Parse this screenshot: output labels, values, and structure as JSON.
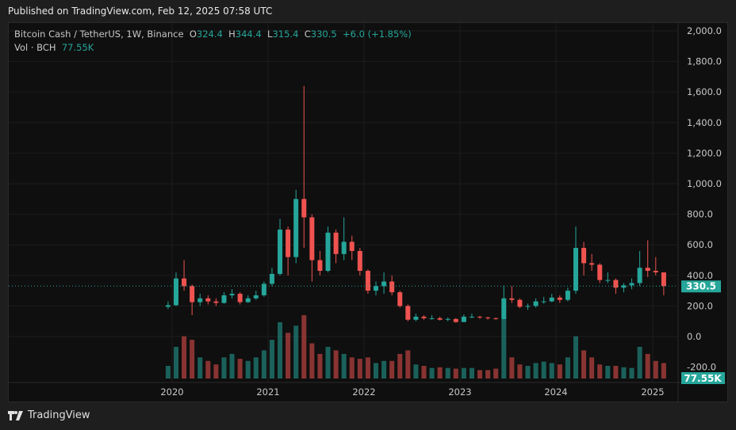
{
  "header": {
    "published": "Published on TradingView.com, Feb 12, 2025 07:58 UTC"
  },
  "legend": {
    "symbol": "Bitcoin Cash / TetherUS, 1W, Binance",
    "o_label": "O",
    "o": "324.4",
    "h_label": "H",
    "h": "344.4",
    "l_label": "L",
    "l": "315.4",
    "c_label": "C",
    "c": "330.5",
    "change": "+6.0 (+1.85%)",
    "vol_label": "Vol · BCH",
    "vol": "77.55K"
  },
  "footer": {
    "brand": "TradingView"
  },
  "colors": {
    "up": "#26a69a",
    "down": "#ef5350",
    "background": "#0f0f0f",
    "last_price": "#26a69a"
  },
  "chart_data": {
    "type": "candlestick",
    "interval_shown": "1W",
    "y_ticks": [
      "2,000.0",
      "1,800.0",
      "1,600.0",
      "1,400.0",
      "1,200.0",
      "1,000.0",
      "800.0",
      "600.0",
      "400.0",
      "200.0",
      "0.0",
      "-200.0"
    ],
    "y_tick_values": [
      2000,
      1800,
      1600,
      1400,
      1200,
      1000,
      800,
      600,
      400,
      200,
      0,
      -200
    ],
    "x_ticks": [
      "2020",
      "2021",
      "2022",
      "2023",
      "2024",
      "2025"
    ],
    "ylim": [
      -200,
      2000
    ],
    "last_price_label": "330.5",
    "last_volume_label": "77.55K",
    "grid": true,
    "period": [
      "2019-12",
      "2025-02"
    ],
    "close": [
      205,
      380,
      330,
      225,
      250,
      230,
      220,
      270,
      280,
      225,
      250,
      270,
      345,
      410,
      700,
      520,
      900,
      780,
      500,
      430,
      680,
      540,
      620,
      560,
      430,
      300,
      330,
      360,
      290,
      200,
      110,
      130,
      120,
      120,
      110,
      115,
      95,
      130,
      130,
      125,
      120,
      115,
      250,
      240,
      195,
      200,
      230,
      230,
      255,
      240,
      300,
      580,
      480,
      470,
      370,
      370,
      320,
      335,
      350,
      450,
      430,
      420,
      330.5
    ],
    "high": [
      230,
      420,
      500,
      340,
      280,
      270,
      250,
      290,
      310,
      290,
      270,
      300,
      360,
      450,
      770,
      720,
      960,
      1640,
      800,
      560,
      720,
      700,
      780,
      660,
      580,
      440,
      360,
      420,
      400,
      300,
      210,
      150,
      140,
      140,
      130,
      125,
      120,
      145,
      150,
      135,
      130,
      125,
      335,
      330,
      250,
      215,
      250,
      260,
      280,
      270,
      320,
      720,
      620,
      540,
      480,
      420,
      380,
      350,
      380,
      560,
      630,
      520,
      420
    ],
    "low": [
      180,
      200,
      300,
      140,
      200,
      210,
      200,
      215,
      250,
      210,
      220,
      240,
      260,
      330,
      400,
      400,
      480,
      580,
      360,
      400,
      420,
      480,
      500,
      500,
      400,
      280,
      270,
      280,
      270,
      190,
      100,
      100,
      110,
      110,
      105,
      100,
      90,
      95,
      120,
      115,
      110,
      110,
      115,
      220,
      185,
      175,
      190,
      215,
      225,
      220,
      230,
      280,
      400,
      430,
      350,
      350,
      280,
      290,
      310,
      330,
      390,
      400,
      270
    ],
    "volume": [
      18,
      45,
      60,
      55,
      30,
      25,
      20,
      30,
      35,
      28,
      25,
      30,
      40,
      55,
      80,
      65,
      75,
      90,
      50,
      35,
      45,
      40,
      35,
      30,
      28,
      30,
      22,
      25,
      25,
      35,
      40,
      20,
      18,
      15,
      16,
      15,
      14,
      15,
      15,
      12,
      12,
      14,
      85,
      30,
      20,
      18,
      22,
      24,
      22,
      20,
      30,
      60,
      40,
      30,
      20,
      18,
      18,
      16,
      15,
      45,
      35,
      25,
      22
    ]
  }
}
